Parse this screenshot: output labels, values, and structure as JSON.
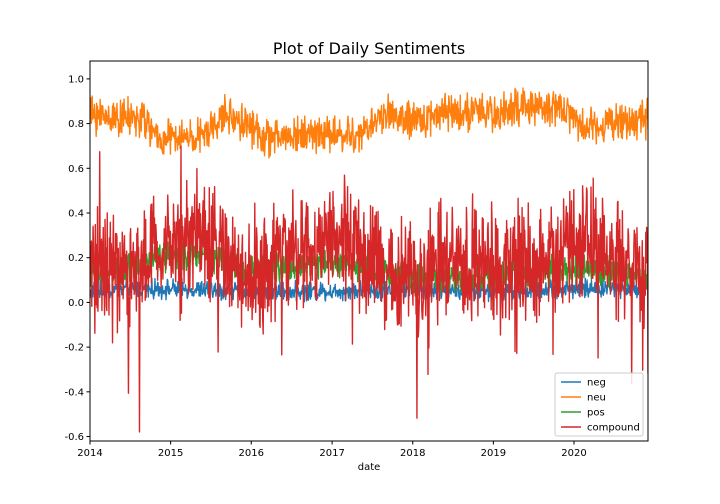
{
  "chart_data": {
    "type": "line",
    "title": "Plot of Daily Sentiments",
    "xlabel": "date",
    "ylabel": "",
    "x_range": [
      "2014-01-01",
      "2020-12-01"
    ],
    "x_ticks": [
      "2014",
      "2015",
      "2016",
      "2017",
      "2018",
      "2019",
      "2020"
    ],
    "ylim": [
      -0.62,
      1.08
    ],
    "y_ticks": [
      "-0.6",
      "-0.4",
      "-0.2",
      "0.0",
      "0.2",
      "0.4",
      "0.6",
      "0.8",
      "1.0"
    ],
    "grid": false,
    "legend_position": "bottom-right",
    "series": [
      {
        "name": "neg",
        "color": "#1f77b4",
        "profile": [
          [
            "2014-01-01",
            0.05
          ],
          [
            "2014-07-01",
            0.06
          ],
          [
            "2015-01-01",
            0.06
          ],
          [
            "2016-01-01",
            0.05
          ],
          [
            "2017-01-01",
            0.05
          ],
          [
            "2018-01-01",
            0.06
          ],
          [
            "2019-01-01",
            0.05
          ],
          [
            "2020-01-01",
            0.06
          ],
          [
            "2020-12-01",
            0.07
          ]
        ],
        "spread": 0.05
      },
      {
        "name": "neu",
        "color": "#ff7f0e",
        "profile": [
          [
            "2014-01-01",
            0.84
          ],
          [
            "2014-09-01",
            0.82
          ],
          [
            "2014-11-01",
            0.73
          ],
          [
            "2015-06-01",
            0.74
          ],
          [
            "2015-09-01",
            0.84
          ],
          [
            "2015-12-15",
            0.8
          ],
          [
            "2016-03-01",
            0.73
          ],
          [
            "2016-11-01",
            0.76
          ],
          [
            "2017-05-01",
            0.74
          ],
          [
            "2017-09-01",
            0.85
          ],
          [
            "2018-01-01",
            0.8
          ],
          [
            "2018-06-01",
            0.86
          ],
          [
            "2019-01-01",
            0.84
          ],
          [
            "2019-03-01",
            0.86
          ],
          [
            "2019-11-01",
            0.88
          ],
          [
            "2020-02-01",
            0.79
          ],
          [
            "2020-12-01",
            0.82
          ]
        ],
        "spread": 0.1
      },
      {
        "name": "pos",
        "color": "#2ca02c",
        "profile": [
          [
            "2014-01-01",
            0.12
          ],
          [
            "2015-01-01",
            0.2
          ],
          [
            "2015-06-01",
            0.22
          ],
          [
            "2016-01-01",
            0.14
          ],
          [
            "2017-01-01",
            0.18
          ],
          [
            "2018-01-01",
            0.12
          ],
          [
            "2019-01-01",
            0.11
          ],
          [
            "2020-01-01",
            0.15
          ],
          [
            "2020-12-01",
            0.12
          ]
        ],
        "spread": 0.08
      },
      {
        "name": "compound",
        "color": "#d62728",
        "profile": [
          [
            "2014-01-01",
            0.15
          ],
          [
            "2014-06-01",
            0.12
          ],
          [
            "2015-01-01",
            0.28
          ],
          [
            "2015-06-01",
            0.3
          ],
          [
            "2015-12-01",
            0.12
          ],
          [
            "2016-06-01",
            0.22
          ],
          [
            "2017-03-01",
            0.28
          ],
          [
            "2017-09-01",
            0.1
          ],
          [
            "2018-06-01",
            0.18
          ],
          [
            "2019-06-01",
            0.16
          ],
          [
            "2020-03-01",
            0.28
          ],
          [
            "2020-12-01",
            0.12
          ]
        ],
        "spread": 0.3
      }
    ]
  }
}
